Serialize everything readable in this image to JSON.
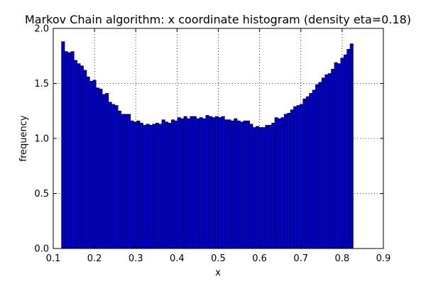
{
  "chart_data": {
    "type": "bar",
    "title": "Markov Chain algorithm: x coordinate histogram (density eta=0.18)",
    "xlabel": "x",
    "ylabel": "frequency",
    "xlim": [
      0.1,
      0.9
    ],
    "ylim": [
      0.0,
      2.0
    ],
    "xticks": [
      "0.1",
      "0.2",
      "0.3",
      "0.4",
      "0.5",
      "0.6",
      "0.7",
      "0.8",
      "0.9"
    ],
    "yticks": [
      "0.0",
      "0.5",
      "1.0",
      "1.5",
      "2.0"
    ],
    "grid": true,
    "bin_start": 0.12,
    "bin_width": 0.0076,
    "values": [
      1.88,
      1.79,
      1.78,
      1.79,
      1.71,
      1.68,
      1.66,
      1.62,
      1.56,
      1.52,
      1.53,
      1.46,
      1.45,
      1.4,
      1.41,
      1.33,
      1.31,
      1.3,
      1.25,
      1.22,
      1.22,
      1.22,
      1.16,
      1.15,
      1.16,
      1.14,
      1.12,
      1.13,
      1.12,
      1.13,
      1.14,
      1.13,
      1.17,
      1.15,
      1.14,
      1.17,
      1.16,
      1.19,
      1.18,
      1.2,
      1.18,
      1.2,
      1.2,
      1.18,
      1.19,
      1.18,
      1.21,
      1.2,
      1.19,
      1.2,
      1.19,
      1.2,
      1.17,
      1.17,
      1.16,
      1.18,
      1.16,
      1.15,
      1.16,
      1.16,
      1.13,
      1.1,
      1.11,
      1.1,
      1.1,
      1.12,
      1.12,
      1.14,
      1.19,
      1.18,
      1.19,
      1.22,
      1.23,
      1.26,
      1.29,
      1.3,
      1.31,
      1.36,
      1.38,
      1.41,
      1.44,
      1.49,
      1.51,
      1.55,
      1.58,
      1.59,
      1.63,
      1.69,
      1.68,
      1.73,
      1.76,
      1.81,
      1.86
    ],
    "colors": {
      "bar": "#0000cc",
      "edge": "#000000",
      "grid": "#000000"
    }
  }
}
